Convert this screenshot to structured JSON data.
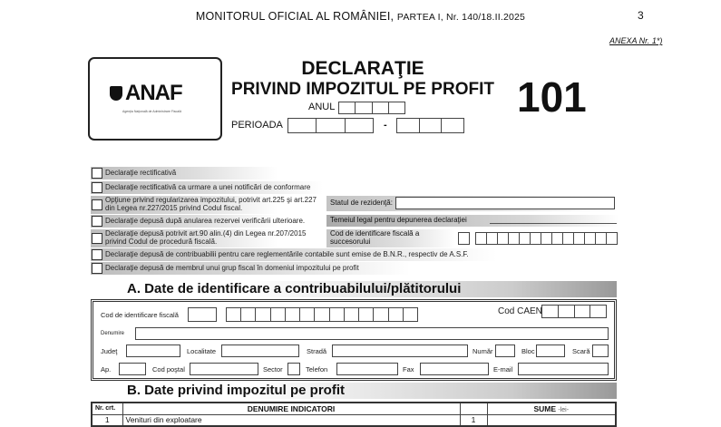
{
  "header": {
    "publication": "MONITORUL OFICIAL AL ROMÂNIEI,",
    "part": "PARTEA I, Nr. 140/18.II.2025",
    "page_number": "3",
    "annex": "ANEXA Nr. 1*)"
  },
  "logo": {
    "brand": "ANAF",
    "subtitle": "Agenţia Naţională de Administrare Fiscală"
  },
  "title": {
    "line1": "DECLARAŢIE",
    "line2": "PRIVIND IMPOZITUL PE PROFIT",
    "form_number": "101",
    "year_label": "ANUL",
    "period_label": "PERIOADA",
    "period_separator": "-"
  },
  "options": [
    {
      "label": "Declaraţie rectificativă",
      "checked": false
    },
    {
      "label": "Declaraţie rectificativă ca urmare a unei notificări de conformare",
      "checked": false
    },
    {
      "label": "Opţiune privind regularizarea impozitului, potrivit art.225 şi art.227 din Legea nr.227/2015 privind Codul fiscal.",
      "checked": false
    },
    {
      "label": "Declaraţie depusă după anularea rezervei verificării ulterioare.",
      "checked": false
    },
    {
      "label": "Declaraţie depusă potrivit art.90 alin.(4) din Legea nr.207/2015 privind Codul de procedură fiscală.",
      "checked": false
    },
    {
      "label": "Declaraţie depusă de contribuabilii pentru care reglementările contabile sunt emise de B.N.R., respectiv de A.S.F.",
      "checked": false
    },
    {
      "label": "Declaraţie depusă de membrul unui grup fiscal în domeniul impozitului pe profit",
      "checked": false
    }
  ],
  "right_fields": {
    "residence_label": "Statul de rezidenţă:",
    "legal_basis_label": "Temeiul legal pentru depunerea declaraţiei",
    "successor_cif_label": "Cod de identificare fiscală a succesorului"
  },
  "section_a": {
    "title": "A. Date de identificare a contribuabilului/plătitorului",
    "cif": "Cod de identificare fiscală",
    "caen": "Cod CAEN",
    "name": "Denumire",
    "county": "Judeţ",
    "locality": "Localitate",
    "street": "Stradă",
    "number": "Număr",
    "block": "Bloc",
    "staircase": "Scară",
    "apartment": "Ap.",
    "postal_code": "Cod poştal",
    "sector": "Sector",
    "phone": "Telefon",
    "fax": "Fax",
    "email": "E-mail"
  },
  "section_b": {
    "title": "B. Date privind impozitul pe profit",
    "col_nr": "Nr. crt.",
    "col_name": "DENUMIRE INDICATORI",
    "col_sums": "SUME",
    "col_unit": "-lei-",
    "rows": [
      {
        "nr": "1",
        "name": "Venituri din exploatare",
        "code": "1",
        "value": ""
      }
    ]
  }
}
